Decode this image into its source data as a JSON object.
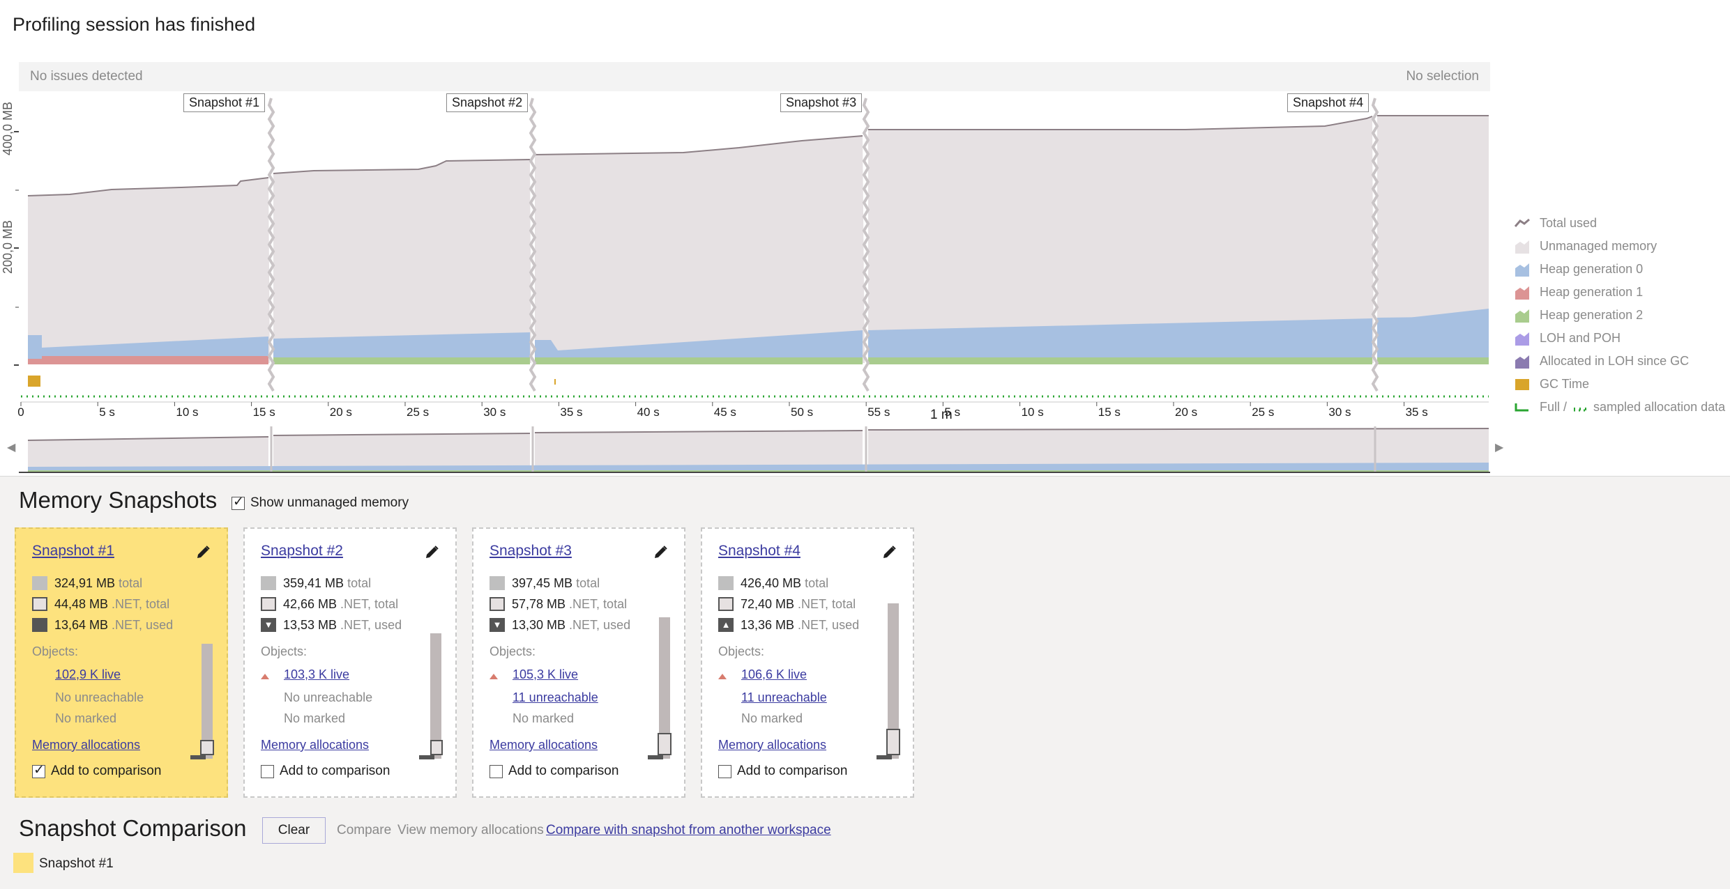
{
  "page_title": "Profiling session has finished",
  "info_bar": {
    "left": "No issues detected",
    "right": "No selection"
  },
  "y_axis": {
    "label_high": "400,0 MB",
    "label_mid": "200,0 MB"
  },
  "snapshot_tags": [
    "Snapshot #1",
    "Snapshot #2",
    "Snapshot #3",
    "Snapshot #4"
  ],
  "time_axis": {
    "ticks": [
      "0",
      "5 s",
      "10 s",
      "15 s",
      "20 s",
      "25 s",
      "30 s",
      "35 s",
      "40 s",
      "45 s",
      "50 s",
      "55 s",
      "5 s",
      "10 s",
      "15 s",
      "20 s",
      "25 s",
      "30 s",
      "35 s"
    ],
    "minute_label": "1 m"
  },
  "legend": [
    {
      "label": "Total used",
      "color": "#8c7f85"
    },
    {
      "label": "Unmanaged memory",
      "color": "#e6e1e3"
    },
    {
      "label": "Heap generation 0",
      "color": "#a7c0e1"
    },
    {
      "label": "Heap generation 1",
      "color": "#dc9494"
    },
    {
      "label": "Heap generation 2",
      "color": "#a9cc8e"
    },
    {
      "label": "LOH and POH",
      "color": "#ab9ce6"
    },
    {
      "label": "Allocated in LOH since GC",
      "color": "#8b7bb0"
    },
    {
      "label": "GC Time",
      "color": "#d9a52b"
    },
    {
      "label": "Full /",
      "label2": "sampled allocation data",
      "color": "#2aa532"
    }
  ],
  "memory_snapshots": {
    "title": "Memory Snapshots",
    "show_unmanaged_label": "Show unmanaged memory",
    "show_unmanaged_checked": true,
    "cards": [
      {
        "title": "Snapshot #1",
        "selected": true,
        "total_value": "324,91 MB",
        "total_unit": "total",
        "net_total_value": "44,48 MB",
        "net_total_unit": ".NET, total",
        "net_used_value": "13,64 MB",
        "net_used_unit": ".NET, used",
        "objects_label": "Objects:",
        "live": "102,9 K live",
        "unreachable": "No unreachable",
        "marked": "No marked",
        "alloc_link": "Memory allocations",
        "compare_label": "Add to comparison",
        "compare_checked": true
      },
      {
        "title": "Snapshot #2",
        "selected": false,
        "total_value": "359,41 MB",
        "total_unit": "total",
        "net_total_value": "42,66 MB",
        "net_total_unit": ".NET, total",
        "net_used_value": "13,53 MB",
        "net_used_unit": ".NET, used",
        "objects_label": "Objects:",
        "live": "103,3 K live",
        "unreachable": "No unreachable",
        "marked": "No marked",
        "alloc_link": "Memory allocations",
        "compare_label": "Add to comparison",
        "compare_checked": false
      },
      {
        "title": "Snapshot #3",
        "selected": false,
        "total_value": "397,45 MB",
        "total_unit": "total",
        "net_total_value": "57,78 MB",
        "net_total_unit": ".NET, total",
        "net_used_value": "13,30 MB",
        "net_used_unit": ".NET, used",
        "objects_label": "Objects:",
        "live": "105,3 K live",
        "unreachable": "11 unreachable",
        "marked": "No marked",
        "alloc_link": "Memory allocations",
        "compare_label": "Add to comparison",
        "compare_checked": false
      },
      {
        "title": "Snapshot #4",
        "selected": false,
        "total_value": "426,40 MB",
        "total_unit": "total",
        "net_total_value": "72,40 MB",
        "net_total_unit": ".NET, total",
        "net_used_value": "13,36 MB",
        "net_used_unit": ".NET, used",
        "objects_label": "Objects:",
        "live": "106,6 K live",
        "unreachable": "11 unreachable",
        "marked": "No marked",
        "alloc_link": "Memory allocations",
        "compare_label": "Add to comparison",
        "compare_checked": false
      }
    ]
  },
  "comparison": {
    "title": "Snapshot Comparison",
    "clear_label": "Clear",
    "compare_label": "Compare",
    "view_alloc_label": "View memory allocations",
    "other_workspace_label": "Compare with snapshot from another workspace",
    "selected_item": "Snapshot #1",
    "selected_color": "#fde27e"
  }
}
